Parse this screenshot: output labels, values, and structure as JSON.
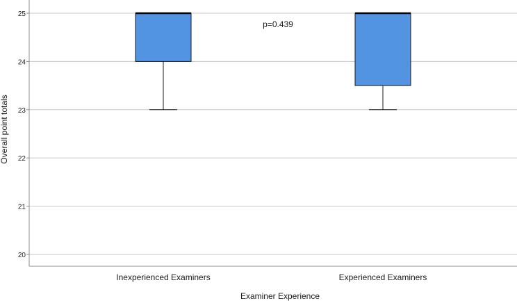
{
  "chart_data": {
    "type": "box",
    "title": "",
    "xlabel": "Examiner Experience",
    "ylabel": "Overall point totals",
    "ylim": [
      19.8,
      25.25
    ],
    "yticks": [
      20,
      21,
      22,
      23,
      24,
      25
    ],
    "grid": true,
    "annotation": "p=0.439",
    "categories": [
      "Inexperienced Examiners",
      "Experienced Examiners"
    ],
    "boxes": [
      {
        "category": "Inexperienced Examiners",
        "min": 23,
        "q1": 24,
        "median": 25,
        "q3": 25,
        "max": 25
      },
      {
        "category": "Experienced Examiners",
        "min": 23,
        "q1": 23.5,
        "median": 25,
        "q3": 25,
        "max": 25
      }
    ],
    "box_color": "#5294e2"
  }
}
